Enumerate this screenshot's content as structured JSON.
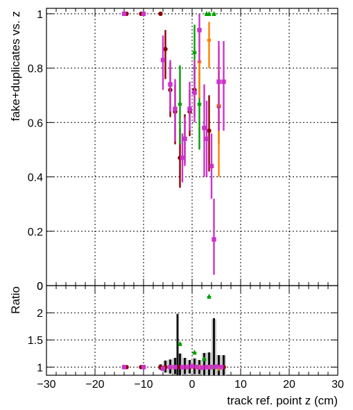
{
  "chart_data": [
    {
      "type": "scatter",
      "panel": "main",
      "title": "",
      "xlabel": "",
      "ylabel": "fake+duplicates vs. z",
      "xlim": [
        -30,
        30
      ],
      "ylim": [
        0,
        1.02
      ],
      "xticks": [
        -30,
        -20,
        -10,
        0,
        10,
        20,
        30
      ],
      "yticks": [
        0,
        0.2,
        0.4,
        0.6,
        0.8,
        1
      ],
      "ytick_labels": [
        "0",
        "0.2",
        "0.4",
        "0.6",
        "0.8",
        "1"
      ],
      "grid": true,
      "series": [
        {
          "color": "#8B0000",
          "marker": "circle",
          "points": [
            {
              "x": -13.5,
              "y": 1.0,
              "lo": 1.0,
              "hi": 1.0
            },
            {
              "x": -10.5,
              "y": 1.0,
              "lo": 1.0,
              "hi": 1.0
            },
            {
              "x": -6.5,
              "y": 1.0,
              "lo": 1.0,
              "hi": 1.0
            },
            {
              "x": -5.5,
              "y": 0.87,
              "lo": 0.76,
              "hi": 0.94
            },
            {
              "x": -4.5,
              "y": 0.72,
              "lo": 0.62,
              "hi": 0.82
            },
            {
              "x": -3.5,
              "y": 0.64,
              "lo": 0.52,
              "hi": 0.74
            },
            {
              "x": -2.5,
              "y": 0.47,
              "lo": 0.36,
              "hi": 0.58
            },
            {
              "x": -1.5,
              "y": 0.54,
              "lo": 0.45,
              "hi": 0.63
            },
            {
              "x": -0.5,
              "y": 0.64,
              "lo": 0.55,
              "hi": 0.72
            },
            {
              "x": 0.5,
              "y": 0.72,
              "lo": 0.62,
              "hi": 0.81
            },
            {
              "x": 3.5,
              "y": 0.57,
              "lo": 0.42,
              "hi": 0.7
            },
            {
              "x": 5.5,
              "y": 0.66,
              "lo": 0.52,
              "hi": 0.79
            }
          ]
        },
        {
          "color": "#00A000",
          "marker": "triangle",
          "points": [
            {
              "x": -2.5,
              "y": 0.67,
              "lo": 0.52,
              "hi": 0.81
            },
            {
              "x": 0.5,
              "y": 0.86,
              "lo": 0.74,
              "hi": 0.96
            },
            {
              "x": 1.5,
              "y": 0.67,
              "lo": 0.5,
              "hi": 0.82
            },
            {
              "x": 3.0,
              "y": 1.0,
              "lo": 1.0,
              "hi": 1.0
            },
            {
              "x": 3.5,
              "y": 1.0,
              "lo": 1.0,
              "hi": 1.0
            },
            {
              "x": 4.5,
              "y": 1.0,
              "lo": 1.0,
              "hi": 1.0
            }
          ]
        },
        {
          "color": "#FF8000",
          "marker": "triangle-down",
          "points": [
            {
              "x": 1.5,
              "y": 0.82,
              "lo": 0.69,
              "hi": 0.93
            },
            {
              "x": 3.5,
              "y": 0.9,
              "lo": 0.8,
              "hi": 0.97
            },
            {
              "x": 5.5,
              "y": 0.66,
              "lo": 0.4,
              "hi": 0.88
            }
          ]
        },
        {
          "color": "#CC33CC",
          "marker": "square",
          "points": [
            {
              "x": -14.0,
              "y": 1.0,
              "lo": 1.0,
              "hi": 1.0
            },
            {
              "x": -10.0,
              "y": 1.0,
              "lo": 1.0,
              "hi": 1.0
            },
            {
              "x": -6.0,
              "y": 0.83,
              "lo": 0.72,
              "hi": 0.92
            },
            {
              "x": -4.5,
              "y": 0.74,
              "lo": 0.64,
              "hi": 0.83
            },
            {
              "x": -3.5,
              "y": 0.65,
              "lo": 0.53,
              "hi": 0.76
            },
            {
              "x": -2.0,
              "y": 0.47,
              "lo": 0.38,
              "hi": 0.56
            },
            {
              "x": -1.5,
              "y": 0.54,
              "lo": 0.44,
              "hi": 0.62
            },
            {
              "x": -0.5,
              "y": 0.65,
              "lo": 0.57,
              "hi": 0.75
            },
            {
              "x": 0.5,
              "y": 0.71,
              "lo": 0.6,
              "hi": 0.83
            },
            {
              "x": 1.5,
              "y": 0.94,
              "lo": 0.82,
              "hi": 1.0
            },
            {
              "x": 2.5,
              "y": 0.58,
              "lo": 0.4,
              "hi": 0.74
            },
            {
              "x": 3.0,
              "y": 0.54,
              "lo": 0.4,
              "hi": 0.68
            },
            {
              "x": 4.0,
              "y": 0.44,
              "lo": 0.32,
              "hi": 0.56
            },
            {
              "x": 4.5,
              "y": 0.17,
              "lo": 0.04,
              "hi": 0.32
            },
            {
              "x": 5.5,
              "y": 0.75,
              "lo": 0.57,
              "hi": 0.9
            },
            {
              "x": 6.5,
              "y": 0.75,
              "lo": 0.57,
              "hi": 0.9
            }
          ]
        }
      ]
    },
    {
      "type": "scatter",
      "panel": "ratio",
      "title": "",
      "xlabel": "track ref. point z (cm)",
      "ylabel": "Ratio",
      "xlim": [
        -30,
        30
      ],
      "ylim": [
        0.85,
        2.5
      ],
      "xticks": [
        -30,
        -20,
        -10,
        0,
        10,
        20,
        30
      ],
      "yticks": [
        1,
        1.5,
        2
      ],
      "ytick_labels": [
        "1",
        "1.5",
        "2"
      ],
      "top_tick_label": "0",
      "grid": true,
      "uncertainty_bands": [
        {
          "x": -6.5,
          "lo": 0.95,
          "hi": 1.05
        },
        {
          "x": -5.5,
          "lo": 0.9,
          "hi": 1.12
        },
        {
          "x": -4.5,
          "lo": 0.88,
          "hi": 1.14
        },
        {
          "x": -3.5,
          "lo": 0.87,
          "hi": 1.17
        },
        {
          "x": -2.5,
          "lo": 0.85,
          "hi": 1.25
        },
        {
          "x": -1.5,
          "lo": 0.87,
          "hi": 1.17
        },
        {
          "x": -0.5,
          "lo": 0.88,
          "hi": 1.13
        },
        {
          "x": 0.5,
          "lo": 0.87,
          "hi": 1.16
        },
        {
          "x": 1.5,
          "lo": 0.87,
          "hi": 1.13
        },
        {
          "x": 2.5,
          "lo": 0.85,
          "hi": 1.26
        },
        {
          "x": 3.5,
          "lo": 0.85,
          "hi": 1.27
        },
        {
          "x": 4.5,
          "lo": 0.85,
          "hi": 1.88
        },
        {
          "x": 5.5,
          "lo": 0.85,
          "hi": 1.22
        },
        {
          "x": 6.5,
          "lo": 0.85,
          "hi": 1.22
        }
      ],
      "error_bars": [
        {
          "x": -3.0,
          "lo": 0.85,
          "hi": 1.98
        },
        {
          "x": 4.5,
          "lo": 0.85,
          "hi": 1.9
        }
      ],
      "series": [
        {
          "color": "#8B0000",
          "marker": "circle",
          "points": [
            {
              "x": -13.5,
              "y": 1.0
            },
            {
              "x": -10.5,
              "y": 1.0
            },
            {
              "x": -6.5,
              "y": 1.0
            },
            {
              "x": -5.5,
              "y": 1.0
            },
            {
              "x": -4.5,
              "y": 1.0
            },
            {
              "x": -3.5,
              "y": 1.0
            },
            {
              "x": -2.5,
              "y": 1.0
            },
            {
              "x": -1.5,
              "y": 1.0
            },
            {
              "x": -0.5,
              "y": 1.0
            },
            {
              "x": 0.5,
              "y": 1.0
            },
            {
              "x": 1.5,
              "y": 1.0
            },
            {
              "x": 2.5,
              "y": 1.0
            },
            {
              "x": 3.5,
              "y": 1.0
            },
            {
              "x": 4.5,
              "y": 1.0
            },
            {
              "x": 5.5,
              "y": 1.0
            },
            {
              "x": 6.5,
              "y": 1.0
            }
          ]
        },
        {
          "color": "#00A000",
          "marker": "triangle",
          "points": [
            {
              "x": -2.5,
              "y": 1.43
            },
            {
              "x": 0.5,
              "y": 1.27
            },
            {
              "x": 1.5,
              "y": 1.01
            },
            {
              "x": 2.5,
              "y": 1.15
            },
            {
              "x": 3.5,
              "y": 2.3
            },
            {
              "x": 4.5,
              "y": 1.0
            }
          ]
        },
        {
          "color": "#FF8000",
          "marker": "triangle-down",
          "points": [
            {
              "x": 1.5,
              "y": 1.0
            },
            {
              "x": 3.5,
              "y": 1.0
            },
            {
              "x": 5.5,
              "y": 0.97
            }
          ]
        },
        {
          "color": "#CC33CC",
          "marker": "square",
          "points": [
            {
              "x": -14.0,
              "y": 1.0
            },
            {
              "x": -10.0,
              "y": 1.0
            },
            {
              "x": -6.0,
              "y": 0.97
            },
            {
              "x": -4.5,
              "y": 1.0
            },
            {
              "x": -3.5,
              "y": 1.0
            },
            {
              "x": -2.0,
              "y": 1.0
            },
            {
              "x": -1.0,
              "y": 1.0
            },
            {
              "x": 0.0,
              "y": 1.02
            },
            {
              "x": 1.0,
              "y": 1.0
            },
            {
              "x": 2.0,
              "y": 0.99
            },
            {
              "x": 3.0,
              "y": 1.0
            },
            {
              "x": 4.0,
              "y": 1.0
            },
            {
              "x": 5.0,
              "y": 1.01
            },
            {
              "x": 6.0,
              "y": 1.0
            }
          ]
        }
      ]
    }
  ]
}
